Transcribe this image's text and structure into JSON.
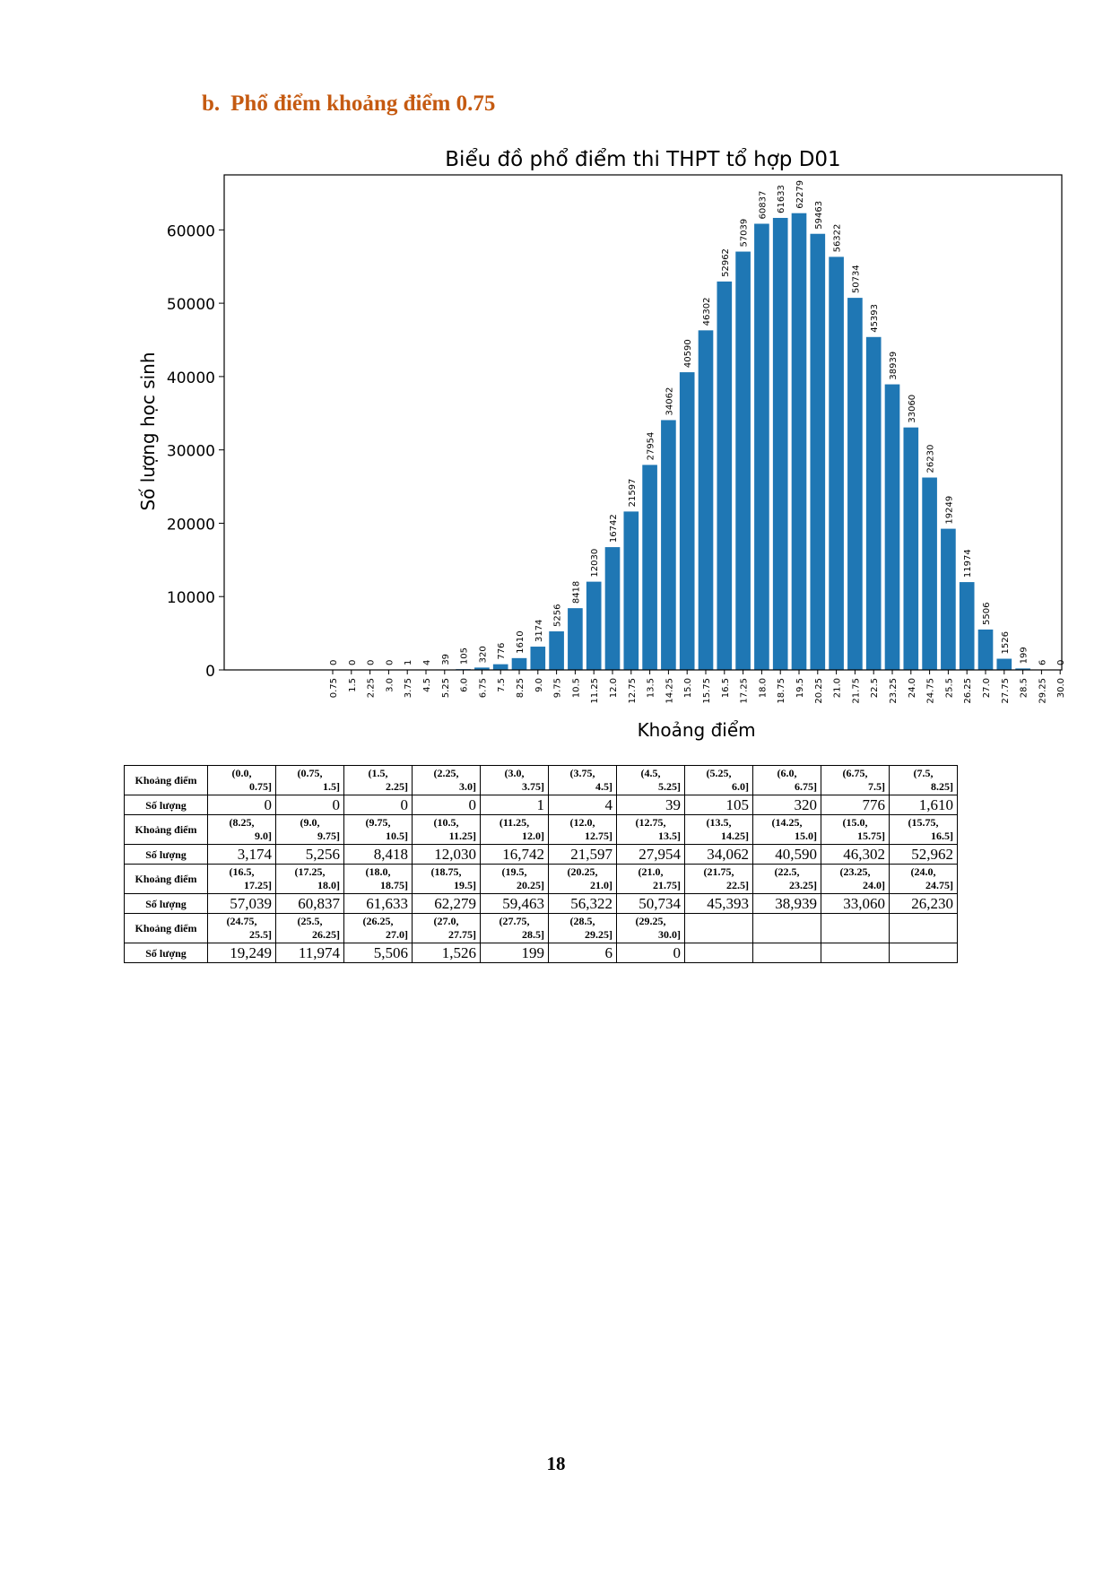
{
  "section": {
    "number": "b.",
    "title": "Phổ điểm khoảng điểm 0.75"
  },
  "chart_data": {
    "type": "bar",
    "title": "Biểu đồ phổ điểm thi THPT tổ hợp D01",
    "xlabel": "Khoảng điểm",
    "ylabel": "Số lượng học sinh",
    "ylim": [
      0,
      67500
    ],
    "yticks": [
      "0",
      "10000",
      "20000",
      "30000",
      "40000",
      "50000",
      "60000"
    ],
    "categories": [
      "0.75",
      "1.5",
      "2.25",
      "3.0",
      "3.75",
      "4.5",
      "5.25",
      "6.0",
      "6.75",
      "7.5",
      "8.25",
      "9.0",
      "9.75",
      "10.5",
      "11.25",
      "12.0",
      "12.75",
      "13.5",
      "14.25",
      "15.0",
      "15.75",
      "16.5",
      "17.25",
      "18.0",
      "18.75",
      "19.5",
      "20.25",
      "21.0",
      "21.75",
      "22.5",
      "23.25",
      "24.0",
      "24.75",
      "25.5",
      "26.25",
      "27.0",
      "27.75",
      "28.5",
      "29.25",
      "30.0"
    ],
    "values": [
      0,
      0,
      0,
      0,
      1,
      4,
      39,
      105,
      320,
      776,
      1610,
      3174,
      5256,
      8418,
      12030,
      16742,
      21597,
      27954,
      34062,
      40590,
      46302,
      52962,
      57039,
      60837,
      61633,
      62279,
      59463,
      56322,
      50734,
      45393,
      38939,
      33060,
      26230,
      19249,
      11974,
      5506,
      1526,
      199,
      6,
      0
    ],
    "grid": false,
    "color": "#1f77b4"
  },
  "table": {
    "range_label": "Khoảng điểm",
    "count_label": "Số lượng",
    "groups": [
      {
        "ranges": [
          [
            "(0.0,",
            "0.75]"
          ],
          [
            "(0.75,",
            "1.5]"
          ],
          [
            "(1.5,",
            "2.25]"
          ],
          [
            "(2.25,",
            "3.0]"
          ],
          [
            "(3.0,",
            "3.75]"
          ],
          [
            "(3.75,",
            "4.5]"
          ],
          [
            "(4.5,",
            "5.25]"
          ],
          [
            "(5.25,",
            "6.0]"
          ],
          [
            "(6.0,",
            "6.75]"
          ],
          [
            "(6.75,",
            "7.5]"
          ],
          [
            "(7.5,",
            "8.25]"
          ]
        ],
        "counts": [
          "0",
          "0",
          "0",
          "0",
          "1",
          "4",
          "39",
          "105",
          "320",
          "776",
          "1,610"
        ]
      },
      {
        "ranges": [
          [
            "(8.25,",
            "9.0]"
          ],
          [
            "(9.0,",
            "9.75]"
          ],
          [
            "(9.75,",
            "10.5]"
          ],
          [
            "(10.5,",
            "11.25]"
          ],
          [
            "(11.25,",
            "12.0]"
          ],
          [
            "(12.0,",
            "12.75]"
          ],
          [
            "(12.75,",
            "13.5]"
          ],
          [
            "(13.5,",
            "14.25]"
          ],
          [
            "(14.25,",
            "15.0]"
          ],
          [
            "(15.0,",
            "15.75]"
          ],
          [
            "(15.75,",
            "16.5]"
          ]
        ],
        "counts": [
          "3,174",
          "5,256",
          "8,418",
          "12,030",
          "16,742",
          "21,597",
          "27,954",
          "34,062",
          "40,590",
          "46,302",
          "52,962"
        ]
      },
      {
        "ranges": [
          [
            "(16.5,",
            "17.25]"
          ],
          [
            "(17.25,",
            "18.0]"
          ],
          [
            "(18.0,",
            "18.75]"
          ],
          [
            "(18.75,",
            "19.5]"
          ],
          [
            "(19.5,",
            "20.25]"
          ],
          [
            "(20.25,",
            "21.0]"
          ],
          [
            "(21.0,",
            "21.75]"
          ],
          [
            "(21.75,",
            "22.5]"
          ],
          [
            "(22.5,",
            "23.25]"
          ],
          [
            "(23.25,",
            "24.0]"
          ],
          [
            "(24.0,",
            "24.75]"
          ]
        ],
        "counts": [
          "57,039",
          "60,837",
          "61,633",
          "62,279",
          "59,463",
          "56,322",
          "50,734",
          "45,393",
          "38,939",
          "33,060",
          "26,230"
        ]
      },
      {
        "ranges": [
          [
            "(24.75,",
            "25.5]"
          ],
          [
            "(25.5,",
            "26.25]"
          ],
          [
            "(26.25,",
            "27.0]"
          ],
          [
            "(27.0,",
            "27.75]"
          ],
          [
            "(27.75,",
            "28.5]"
          ],
          [
            "(28.5,",
            "29.25]"
          ],
          [
            "(29.25,",
            "30.0]"
          ]
        ],
        "counts": [
          "19,249",
          "11,974",
          "5,506",
          "1,526",
          "199",
          "6",
          "0"
        ]
      }
    ]
  },
  "page_number": "18"
}
